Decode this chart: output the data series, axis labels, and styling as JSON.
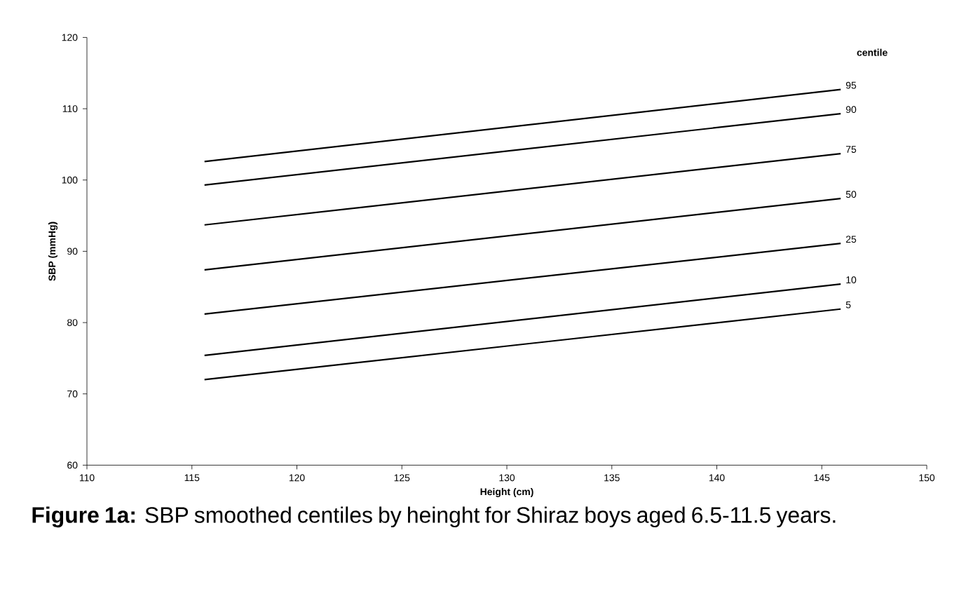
{
  "chart_data": {
    "type": "line",
    "xlabel": "Height (cm)",
    "ylabel": "SBP (mmHg)",
    "legend_title": "centile",
    "annotations": [
      "**Figure 1a:** SBP smoothed centiles by heinght for Shiraz boys aged 6.5-11.5 years."
    ],
    "x": [
      115.6,
      145.9
    ],
    "series": [
      {
        "name": "95",
        "color": "#000000",
        "values": [
          102.6,
          112.7
        ]
      },
      {
        "name": "90",
        "color": "#000000",
        "values": [
          99.3,
          109.3
        ]
      },
      {
        "name": "75",
        "color": "#000000",
        "values": [
          93.7,
          103.7
        ]
      },
      {
        "name": "50",
        "color": "#000000",
        "values": [
          87.4,
          97.4
        ]
      },
      {
        "name": "25",
        "color": "#000000",
        "values": [
          81.2,
          91.1
        ]
      },
      {
        "name": "10",
        "color": "#000000",
        "values": [
          75.4,
          85.4
        ]
      },
      {
        "name": "5",
        "color": "#000000",
        "values": [
          72.0,
          81.9
        ]
      }
    ],
    "xlim": [
      110,
      150
    ],
    "xticks": [
      110,
      115,
      120,
      125,
      130,
      135,
      140,
      145,
      150
    ],
    "ylim": [
      60,
      120
    ],
    "yticks": [
      60,
      70,
      80,
      90,
      100,
      110,
      120
    ],
    "grid": false,
    "marker": "none",
    "line_style": "solid"
  }
}
